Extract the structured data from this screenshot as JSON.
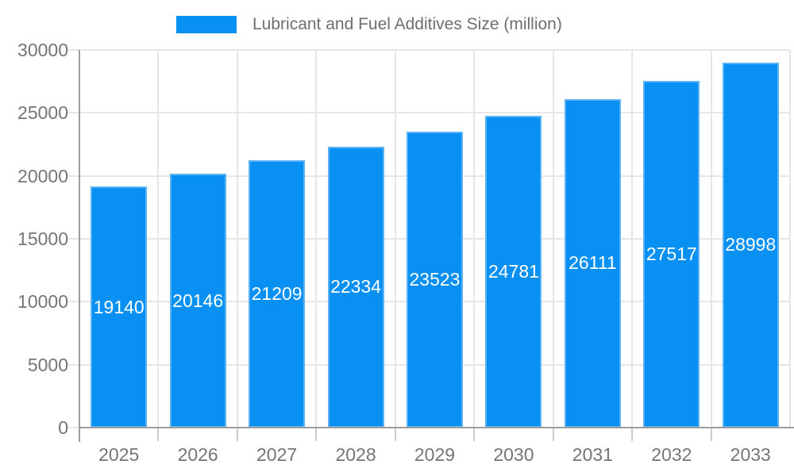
{
  "legend": {
    "label": "Lubricant and Fuel Additives Size (million)"
  },
  "chart_data": {
    "type": "bar",
    "title": "Lubricant and Fuel Additives Size (million)",
    "categories": [
      "2025",
      "2026",
      "2027",
      "2028",
      "2029",
      "2030",
      "2031",
      "2032",
      "2033"
    ],
    "values": [
      19140,
      20146,
      21209,
      22334,
      23523,
      24781,
      26111,
      27517,
      28998
    ],
    "value_labels": [
      "19140",
      "20146",
      "21209",
      "22334",
      "23523",
      "24781",
      "26111",
      "27517",
      "28998"
    ],
    "xlabel": "",
    "ylabel": "",
    "ylim": [
      0,
      30000
    ],
    "ytick_interval": 5000,
    "ytick_labels": [
      "0",
      "5000",
      "10000",
      "15000",
      "20000",
      "25000",
      "30000"
    ],
    "grid": true,
    "legend_position": "top",
    "value_label_position": "inside-center"
  },
  "colors": {
    "bar_fill": "#0890f2",
    "bar_stroke": "#5db2f6",
    "grid_line": "#e6e6e6",
    "axis_line": "#9e9e9e",
    "bottom_tick": "#cccccc",
    "left_tick": "#e6e6e6",
    "tick_label_text": "#757575",
    "legend_text": "#6e6e6e",
    "value_label_text": "#ffffff",
    "background": "#ffffff"
  }
}
